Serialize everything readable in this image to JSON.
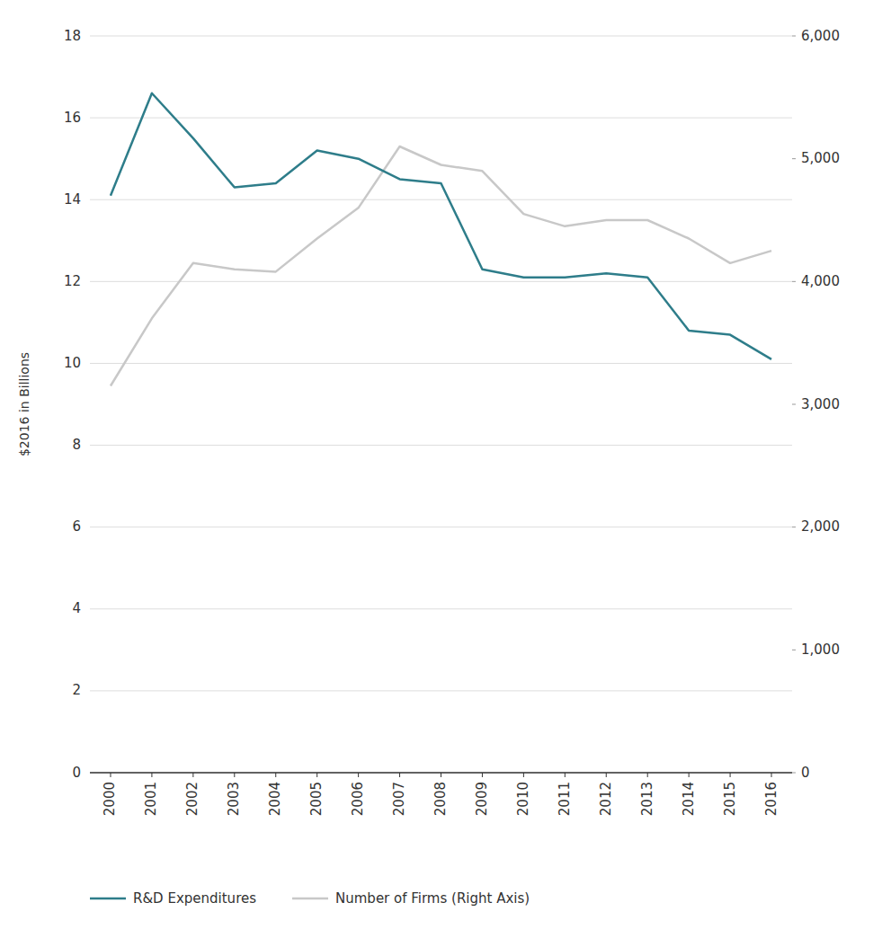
{
  "chart_data": {
    "type": "line",
    "x": [
      2000,
      2001,
      2002,
      2003,
      2004,
      2005,
      2006,
      2007,
      2008,
      2009,
      2010,
      2011,
      2012,
      2013,
      2014,
      2015,
      2016
    ],
    "xlim": [
      1999.5,
      2016.5
    ],
    "xticks": [
      2000,
      2001,
      2002,
      2003,
      2004,
      2005,
      2006,
      2007,
      2008,
      2009,
      2010,
      2011,
      2012,
      2013,
      2014,
      2015,
      2016
    ],
    "ylabel": "$2016 in Billions",
    "ylim": [
      0,
      18
    ],
    "yticks": [
      0,
      2,
      4,
      6,
      8,
      10,
      12,
      14,
      16,
      18
    ],
    "y2lim": [
      0,
      6000
    ],
    "y2ticks": [
      0,
      {
        "value": 1000,
        "label": "1,000"
      },
      {
        "value": 2000,
        "label": "2,000"
      },
      {
        "value": 3000,
        "label": "3,000"
      },
      {
        "value": 4000,
        "label": "4,000"
      },
      {
        "value": 5000,
        "label": "5,000"
      },
      {
        "value": 6000,
        "label": "6,000"
      }
    ],
    "grid": true,
    "legend": "bottom",
    "series": [
      {
        "name": "R&D Expenditures",
        "color": "#2e7d8a",
        "values": [
          14.1,
          16.6,
          15.5,
          14.3,
          14.4,
          15.2,
          15.0,
          14.5,
          14.4,
          12.3,
          12.1,
          12.1,
          12.2,
          12.1,
          10.8,
          10.7,
          10.1
        ]
      },
      {
        "name": "Number of Firms (Right Axis)",
        "color": "#c8c8c8",
        "axis": "y2",
        "values": [
          3150,
          3700,
          4150,
          4100,
          4080,
          4350,
          4600,
          5100,
          4950,
          4900,
          4550,
          4450,
          4500,
          4500,
          4350,
          4150,
          4250
        ]
      }
    ]
  }
}
